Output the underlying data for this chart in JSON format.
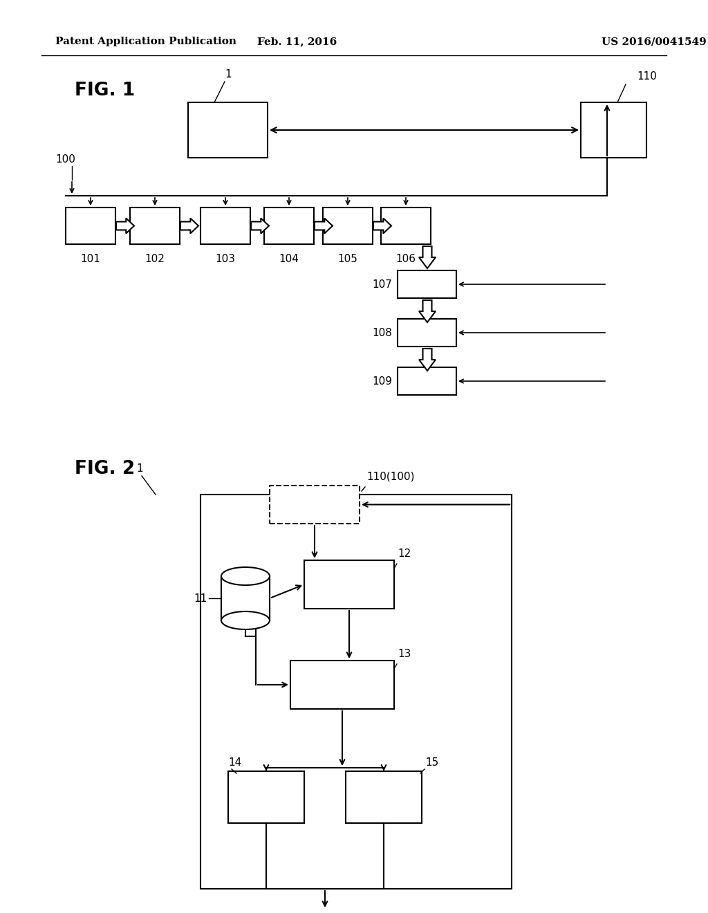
{
  "bg_color": "#ffffff",
  "header_left": "Patent Application Publication",
  "header_center": "Feb. 11, 2016",
  "header_right": "US 2016/0041549 A1",
  "fig1_label": "FIG. 1",
  "fig2_label": "FIG. 2",
  "fig1_note1": "1",
  "fig1_note110": "110",
  "fig1_note100": "100",
  "fig1_boxes": [
    "101",
    "102",
    "103",
    "104",
    "105",
    "106"
  ],
  "fig1_right_boxes": [
    "107",
    "108",
    "109"
  ],
  "fig2_note1": "1",
  "fig2_note110": "110(100)",
  "fig2_note11": "11",
  "fig2_note12": "12",
  "fig2_note13": "13",
  "fig2_note14": "14",
  "fig2_note15": "15"
}
